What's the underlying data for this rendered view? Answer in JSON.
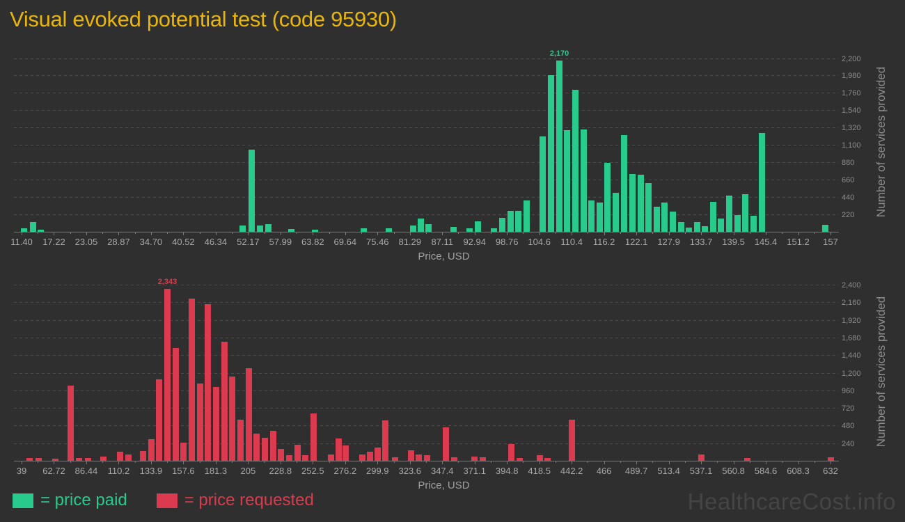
{
  "page": {
    "title": "Visual evoked potential test (code 95930)",
    "watermark": "HealthcareCost.info",
    "background": "#2f2f2f",
    "title_color": "#e7b50e"
  },
  "legend": [
    {
      "label": "= price paid",
      "color": "#29cb8d"
    },
    {
      "label": "= price requested",
      "color": "#dc3a4e"
    }
  ],
  "chart_data": [
    {
      "type": "bar",
      "series_name": "price paid",
      "color": "#29cb8d",
      "title": "",
      "xlabel": "Price, USD",
      "ylabel": "Number of services provided",
      "xlim": [
        11.4,
        157
      ],
      "ylim": [
        0,
        2275
      ],
      "y_tick_step": 220,
      "grid": "dashed-horizontal",
      "legend_position": "bottom-left",
      "x_ticks": [
        "11.40",
        "17.22",
        "23.05",
        "28.87",
        "34.70",
        "40.52",
        "46.34",
        "52.17",
        "57.99",
        "63.82",
        "69.64",
        "75.46",
        "81.29",
        "87.11",
        "92.94",
        "98.76",
        "104.6",
        "110.4",
        "116.2",
        "122.1",
        "127.9",
        "133.7",
        "139.5",
        "145.4",
        "151.2",
        "157"
      ],
      "y_ticks": [
        "220",
        "440",
        "660",
        "880",
        "1,100",
        "1,320",
        "1,540",
        "1,760",
        "1,980",
        "2,200"
      ],
      "peak_annotation": {
        "x": 108.2,
        "label": "2,170"
      },
      "bars": [
        [
          11.9,
          45
        ],
        [
          13.5,
          125
        ],
        [
          14.9,
          25
        ],
        [
          51.2,
          80
        ],
        [
          52.8,
          1040
        ],
        [
          54.3,
          80
        ],
        [
          55.8,
          95
        ],
        [
          59.9,
          35
        ],
        [
          64.2,
          25
        ],
        [
          73.0,
          45
        ],
        [
          77.5,
          40
        ],
        [
          81.9,
          75
        ],
        [
          83.3,
          165
        ],
        [
          84.7,
          95
        ],
        [
          89.2,
          60
        ],
        [
          92.0,
          45
        ],
        [
          93.5,
          130
        ],
        [
          96.4,
          40
        ],
        [
          97.9,
          180
        ],
        [
          99.4,
          265
        ],
        [
          100.8,
          265
        ],
        [
          102.3,
          400
        ],
        [
          105.2,
          1210
        ],
        [
          106.7,
          1980
        ],
        [
          108.2,
          2170
        ],
        [
          109.6,
          1290
        ],
        [
          111.1,
          1800
        ],
        [
          112.6,
          1300
        ],
        [
          114.0,
          400
        ],
        [
          115.5,
          370
        ],
        [
          116.9,
          870
        ],
        [
          118.4,
          490
        ],
        [
          119.9,
          1230
        ],
        [
          121.3,
          730
        ],
        [
          122.8,
          720
        ],
        [
          124.2,
          620
        ],
        [
          125.7,
          320
        ],
        [
          127.1,
          370
        ],
        [
          128.6,
          260
        ],
        [
          130.1,
          120
        ],
        [
          131.5,
          50
        ],
        [
          133.0,
          120
        ],
        [
          134.4,
          70
        ],
        [
          135.9,
          375
        ],
        [
          137.3,
          170
        ],
        [
          138.8,
          455
        ],
        [
          140.3,
          215
        ],
        [
          141.7,
          480
        ],
        [
          143.2,
          200
        ],
        [
          144.6,
          1250
        ],
        [
          156.0,
          90
        ]
      ]
    },
    {
      "type": "bar",
      "series_name": "price requested",
      "color": "#dc3a4e",
      "title": "",
      "xlabel": "Price, USD",
      "ylabel": "Number of services provided",
      "xlim": [
        39,
        632
      ],
      "ylim": [
        0,
        2438
      ],
      "y_tick_step": 240,
      "grid": "dashed-horizontal",
      "legend_position": "bottom-left",
      "x_ticks": [
        "39",
        "62.72",
        "86.44",
        "110.2",
        "133.9",
        "157.6",
        "181.3",
        "205",
        "228.8",
        "252.5",
        "276.2",
        "299.9",
        "323.6",
        "347.4",
        "371.1",
        "394.8",
        "418.5",
        "442.2",
        "466",
        "489.7",
        "513.4",
        "537.1",
        "560.8",
        "584.6",
        "608.3",
        "632"
      ],
      "y_ticks": [
        "240",
        "480",
        "720",
        "960",
        "1,200",
        "1,440",
        "1,680",
        "1,920",
        "2,160",
        "2,400"
      ],
      "peak_annotation": {
        "x": 145.9,
        "label": "2,343"
      },
      "bars": [
        [
          45.1,
          35
        ],
        [
          51.3,
          35
        ],
        [
          63.5,
          30
        ],
        [
          74.8,
          1020
        ],
        [
          80.9,
          35
        ],
        [
          87.6,
          35
        ],
        [
          98.8,
          55
        ],
        [
          111.1,
          120
        ],
        [
          117.2,
          90
        ],
        [
          128.2,
          130
        ],
        [
          134.0,
          295
        ],
        [
          140.0,
          1110
        ],
        [
          145.9,
          2343
        ],
        [
          151.9,
          1540
        ],
        [
          157.8,
          250
        ],
        [
          163.8,
          2210
        ],
        [
          169.8,
          1055
        ],
        [
          175.7,
          2130
        ],
        [
          181.6,
          1010
        ],
        [
          187.6,
          1625
        ],
        [
          193.5,
          1150
        ],
        [
          199.5,
          560
        ],
        [
          205.5,
          1260
        ],
        [
          211.4,
          370
        ],
        [
          217.4,
          310
        ],
        [
          223.3,
          405
        ],
        [
          229.2,
          160
        ],
        [
          235.2,
          75
        ],
        [
          241.1,
          215
        ],
        [
          247.1,
          75
        ],
        [
          253.2,
          645
        ],
        [
          265.7,
          90
        ],
        [
          271.4,
          305
        ],
        [
          276.5,
          210
        ],
        [
          289.0,
          90
        ],
        [
          294.4,
          125
        ],
        [
          300.0,
          180
        ],
        [
          305.9,
          550
        ],
        [
          312.8,
          50
        ],
        [
          324.3,
          140
        ],
        [
          330.2,
          90
        ],
        [
          336.3,
          75
        ],
        [
          350.0,
          460
        ],
        [
          356.0,
          50
        ],
        [
          371.1,
          60
        ],
        [
          377.2,
          45
        ],
        [
          398.0,
          230
        ],
        [
          404.0,
          40
        ],
        [
          419.1,
          80
        ],
        [
          424.7,
          40
        ],
        [
          442.6,
          560
        ],
        [
          537.4,
          90
        ],
        [
          571.0,
          35
        ],
        [
          632.0,
          45
        ]
      ]
    }
  ]
}
